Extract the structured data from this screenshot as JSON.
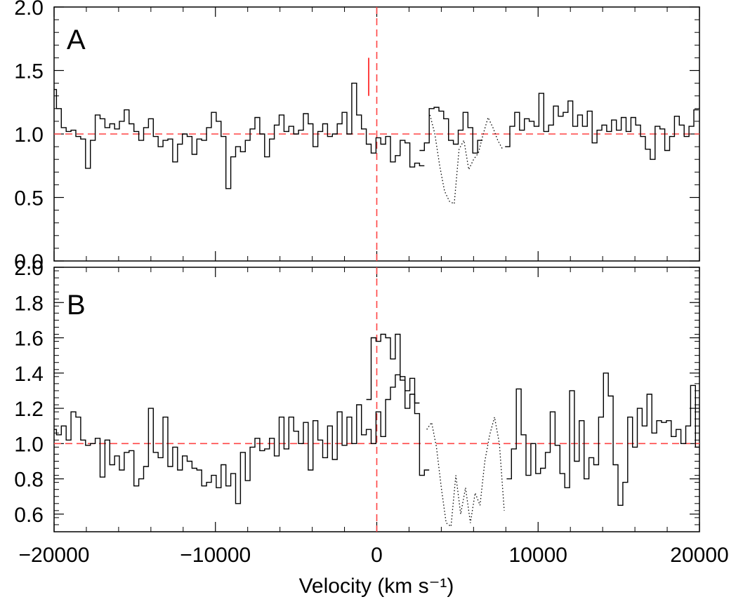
{
  "chart_data": [
    {
      "type": "line",
      "panel_label": "A",
      "xlim": [
        -20000,
        20000
      ],
      "ylim": [
        0.0,
        2.0
      ],
      "x_ticks": [
        -20000,
        -10000,
        0,
        10000,
        20000
      ],
      "y_ticks": [
        "0.0",
        "0.5",
        "1.0",
        "1.5",
        "2.0"
      ],
      "reference_lines": {
        "horizontal_y": 1.0,
        "vertical_x": 0,
        "color": "#ff4444",
        "style": "dashed"
      },
      "marker": {
        "x": -500,
        "y_range": [
          1.3,
          1.6
        ],
        "color": "#ff0000"
      },
      "series": [
        {
          "style": "solid-step",
          "x": [
            -20000,
            -19700,
            -19400,
            -19100,
            -18800,
            -18500,
            -18200,
            -17900,
            -17600,
            -17300,
            -17000,
            -16700,
            -16400,
            -16100,
            -15800,
            -15500,
            -15200,
            -14900,
            -14600,
            -14300,
            -14000,
            -13700,
            -13400,
            -13100,
            -12800,
            -12500,
            -12200,
            -11900,
            -11600,
            -11300,
            -11000,
            -10700,
            -10400,
            -10100,
            -9800,
            -9500,
            -9200,
            -8900,
            -8600,
            -8300,
            -8000,
            -7700,
            -7400,
            -7100,
            -6800,
            -6500,
            -6200,
            -5900,
            -5600,
            -5300,
            -5000,
            -4700,
            -4400,
            -4100,
            -3800,
            -3500,
            -3200,
            -2900,
            -2600,
            -2300,
            -2000,
            -1700,
            -1400,
            -1100,
            -800,
            -500,
            -200,
            100,
            400,
            700,
            1000,
            1300,
            1600,
            1900,
            2200,
            2500,
            2800
          ],
          "y": [
            1.35,
            1.2,
            1.05,
            1.02,
            1.03,
            0.98,
            0.96,
            0.73,
            0.95,
            1.15,
            1.12,
            1.05,
            1.08,
            1.04,
            1.1,
            1.19,
            1.08,
            1.02,
            0.95,
            1.05,
            1.12,
            0.98,
            0.9,
            0.95,
            0.96,
            0.78,
            0.92,
            1.0,
            0.98,
            0.84,
            0.96,
            0.95,
            1.05,
            1.17,
            1.1,
            0.98,
            0.57,
            0.82,
            0.9,
            0.86,
            0.95,
            1.04,
            1.13,
            1.0,
            0.82,
            0.96,
            1.07,
            1.15,
            1.02,
            1.06,
            1.0,
            1.03,
            1.16,
            1.08,
            0.9,
            1.02,
            1.08,
            0.98,
            1.0,
            1.08,
            1.17,
            1.0,
            1.4,
            1.15,
            1.04,
            0.92,
            0.85,
            0.97,
            0.92,
            0.98,
            0.78,
            0.83,
            0.95,
            0.93,
            0.74,
            0.77,
            0.75
          ]
        },
        {
          "style": "solid-step",
          "x": [
            2800,
            3100,
            3400,
            3700,
            4000,
            4300,
            4600,
            4900,
            5200,
            5500,
            5800,
            6100,
            6400
          ],
          "y": [
            0.87,
            0.93,
            1.2,
            1.21,
            1.18,
            1.12,
            0.95,
            0.92,
            1.03,
            1.17,
            1.05,
            0.85,
            0.95
          ]
        },
        {
          "style": "dotted",
          "x": [
            3300,
            3600,
            3900,
            4200,
            4500,
            4800,
            5100,
            5400,
            5700,
            6000,
            6300,
            6600,
            6900,
            7200,
            7500,
            7800
          ],
          "y": [
            1.15,
            1.0,
            0.75,
            0.55,
            0.47,
            0.45,
            0.88,
            0.95,
            0.72,
            0.8,
            0.85,
            1.0,
            1.13,
            1.05,
            0.95,
            0.88
          ]
        },
        {
          "style": "solid-step",
          "x": [
            8100,
            8400,
            8700,
            9000,
            9300,
            9600,
            9900,
            10200,
            10500,
            10800,
            11100,
            11400,
            11700,
            12000,
            12300,
            12600,
            12900,
            13200,
            13500,
            13800,
            14100,
            14400,
            14700,
            15000,
            15300,
            15600,
            15900,
            16200,
            16500,
            16800,
            17100,
            17400,
            17700,
            18000,
            18300,
            18600,
            18900,
            19200,
            19500,
            19800
          ],
          "y": [
            0.9,
            1.06,
            1.17,
            1.03,
            1.12,
            1.1,
            1.06,
            1.32,
            1.02,
            1.07,
            1.22,
            1.14,
            1.17,
            1.26,
            1.06,
            1.15,
            1.06,
            1.18,
            0.93,
            1.03,
            1.07,
            1.02,
            1.11,
            1.03,
            1.13,
            1.02,
            1.13,
            1.07,
            0.98,
            0.88,
            0.8,
            1.06,
            1.04,
            0.87,
            0.98,
            1.14,
            1.07,
            0.98,
            1.06,
            1.19
          ]
        }
      ]
    },
    {
      "type": "line",
      "panel_label": "B",
      "xlabel": "Velocity (km s⁻¹)",
      "xlim": [
        -20000,
        20000
      ],
      "ylim": [
        0.5,
        2.0
      ],
      "x_ticks": [
        "−20000",
        "−10000",
        "0",
        "10000",
        "20000"
      ],
      "y_ticks": [
        "0.6",
        "0.8",
        "1.0",
        "1.2",
        "1.4",
        "1.6",
        "1.8",
        "2.0"
      ],
      "reference_lines": {
        "horizontal_y": 1.0,
        "vertical_x": 0,
        "color": "#ff4444",
        "style": "dashed"
      },
      "series": [
        {
          "style": "solid-step",
          "x": [
            -20000,
            -19700,
            -19400,
            -19100,
            -18800,
            -18500,
            -18200,
            -17900,
            -17600,
            -17300,
            -17000,
            -16700,
            -16400,
            -16100,
            -15800,
            -15500,
            -15200,
            -14900,
            -14600,
            -14300,
            -14000,
            -13700,
            -13400,
            -13100,
            -12800,
            -12500,
            -12200,
            -11900,
            -11600,
            -11300,
            -11000,
            -10700,
            -10400,
            -10100,
            -9800,
            -9500,
            -9200,
            -8900,
            -8600,
            -8300,
            -8000,
            -7700,
            -7400,
            -7100,
            -6800,
            -6500,
            -6200,
            -5900,
            -5600,
            -5300,
            -5000,
            -4700,
            -4400,
            -4100,
            -3800,
            -3500,
            -3200,
            -2900,
            -2600,
            -2300,
            -2000,
            -1700,
            -1400,
            -1100,
            -800,
            -500,
            -200,
            100,
            400,
            700,
            1000,
            1300,
            1600,
            1900,
            2200,
            2500
          ],
          "y": [
            1.08,
            1.05,
            1.1,
            1.02,
            1.18,
            1.15,
            1.02,
            0.99,
            1.0,
            1.03,
            0.81,
            1.02,
            0.88,
            0.93,
            0.85,
            0.95,
            0.96,
            0.76,
            0.8,
            0.87,
            1.2,
            0.95,
            0.92,
            1.15,
            0.87,
            0.98,
            0.85,
            0.93,
            0.9,
            0.86,
            0.85,
            0.76,
            0.78,
            0.82,
            0.75,
            0.88,
            0.76,
            0.83,
            0.66,
            0.95,
            0.79,
            0.98,
            1.03,
            0.96,
            0.97,
            1.03,
            0.93,
            1.15,
            0.97,
            1.15,
            1.07,
            1.0,
            1.12,
            0.85,
            1.13,
            1.02,
            0.92,
            1.1,
            0.91,
            1.18,
            0.99,
            1.15,
            1.0,
            1.22,
            1.05,
            1.08,
            1.0,
            1.18,
            1.04,
            1.25,
            1.32,
            1.39,
            1.36,
            1.3,
            1.37,
            1.23
          ]
        },
        {
          "style": "solid-step",
          "x": [
            -500,
            -200,
            100,
            400,
            700,
            1000,
            1300,
            1600,
            1900,
            2200,
            2500,
            2800,
            3100
          ],
          "y": [
            1.25,
            1.6,
            1.58,
            1.62,
            1.6,
            1.48,
            1.62,
            1.38,
            1.2,
            1.28,
            1.17,
            0.82,
            0.85
          ]
        },
        {
          "style": "dotted",
          "x": [
            3100,
            3400,
            3700,
            4000,
            4300,
            4600,
            4900,
            5200,
            5500,
            5800,
            6100,
            6400,
            6700,
            7000,
            7300,
            7600,
            7900
          ],
          "y": [
            1.08,
            1.12,
            0.98,
            0.75,
            0.55,
            0.53,
            0.82,
            0.6,
            0.75,
            0.55,
            0.72,
            0.65,
            0.9,
            1.05,
            1.15,
            1.0,
            0.62
          ]
        },
        {
          "style": "solid-step",
          "x": [
            8200,
            8500,
            8800,
            9100,
            9400,
            9700,
            10000,
            10300,
            10600,
            10900,
            11200,
            11500,
            11800,
            12100,
            12400,
            12700,
            13000,
            13300,
            13600,
            13900,
            14200,
            14500,
            14800,
            15100,
            15400,
            15700,
            16000,
            16300,
            16600,
            16900,
            17200,
            17500,
            17800,
            18100,
            18400,
            18700,
            19000,
            19300,
            19600,
            19900
          ],
          "y": [
            0.8,
            0.97,
            1.31,
            1.05,
            0.82,
            1.0,
            0.83,
            0.86,
            0.95,
            1.18,
            0.99,
            0.83,
            0.75,
            1.3,
            0.9,
            1.13,
            0.8,
            0.92,
            0.88,
            1.15,
            1.4,
            1.27,
            0.88,
            0.65,
            0.78,
            1.15,
            0.98,
            1.2,
            1.1,
            1.28,
            1.06,
            1.13,
            1.12,
            1.13,
            1.04,
            1.08,
            1.0,
            1.1,
            1.33,
            0.98
          ]
        }
      ]
    }
  ]
}
